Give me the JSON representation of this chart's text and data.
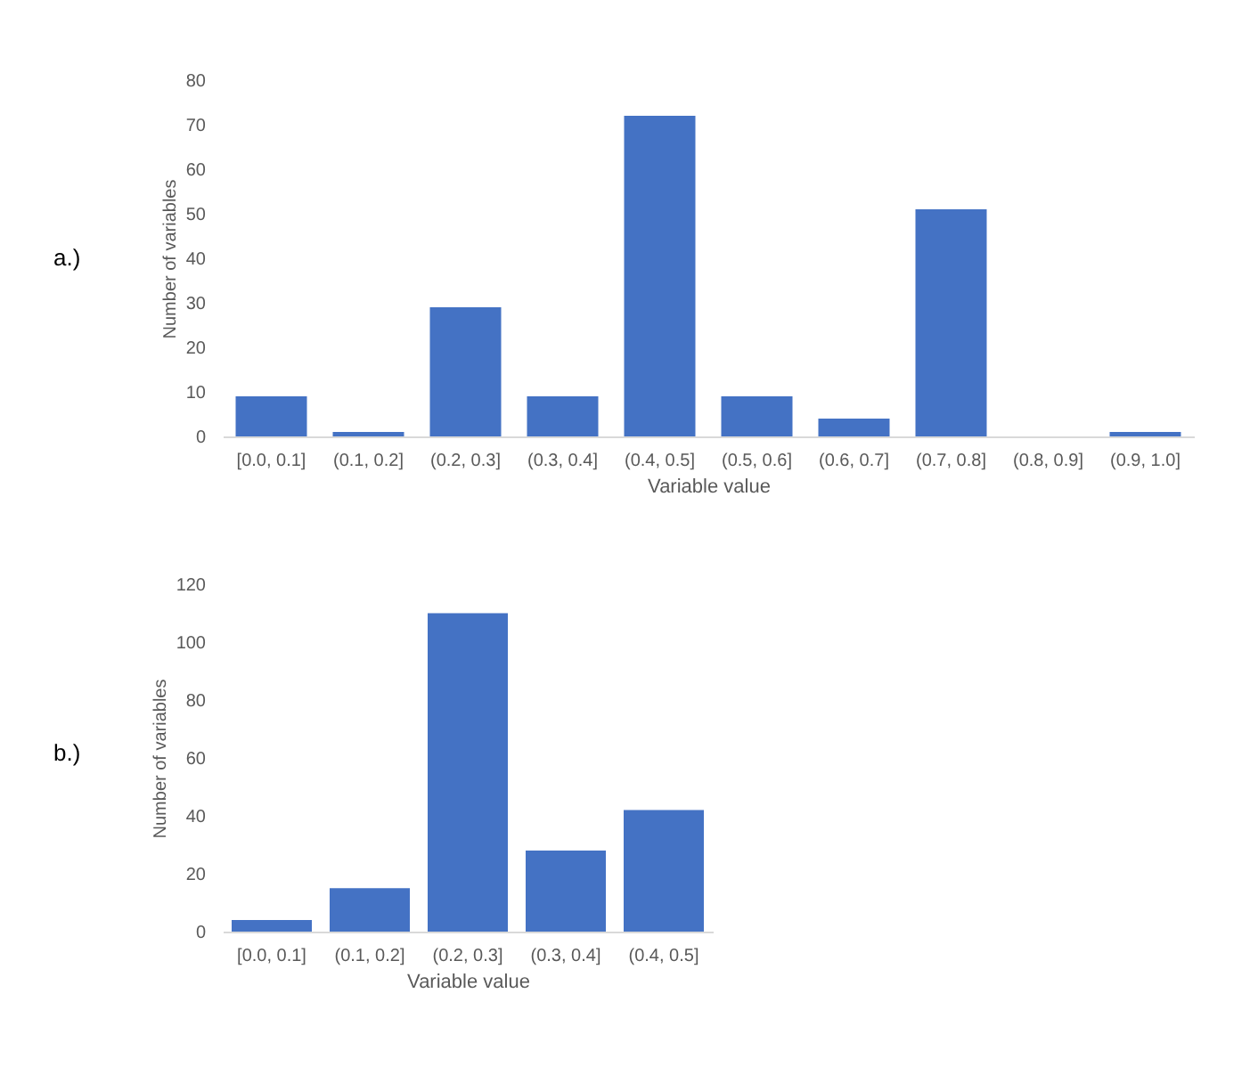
{
  "chart_data": [
    {
      "type": "bar",
      "annotations": [
        "a.)"
      ],
      "xlabel": "Variable value",
      "ylabel": "Number of variables",
      "categories": [
        "[0.0, 0.1]",
        "(0.1, 0.2]",
        "(0.2, 0.3]",
        "(0.3, 0.4]",
        "(0.4, 0.5]",
        "(0.5, 0.6]",
        "(0.6, 0.7]",
        "(0.7, 0.8]",
        "(0.8, 0.9]",
        "(0.9, 1.0]"
      ],
      "values": [
        9,
        1,
        29,
        9,
        72,
        9,
        4,
        51,
        0,
        1
      ],
      "color": "#4472c4",
      "ylim": [
        0,
        80
      ],
      "yticks": [
        0,
        10,
        20,
        30,
        40,
        50,
        60,
        70,
        80
      ],
      "grid": false
    },
    {
      "type": "bar",
      "annotations": [
        "b.)"
      ],
      "xlabel": "Variable value",
      "ylabel": "Number of variables",
      "categories": [
        "[0.0, 0.1]",
        "(0.1, 0.2]",
        "(0.2, 0.3]",
        "(0.3, 0.4]",
        "(0.4, 0.5]"
      ],
      "values": [
        4,
        15,
        110,
        28,
        42
      ],
      "color": "#4472c4",
      "ylim": [
        0,
        120
      ],
      "yticks": [
        0,
        20,
        40,
        60,
        80,
        100,
        120
      ],
      "grid": false
    }
  ]
}
